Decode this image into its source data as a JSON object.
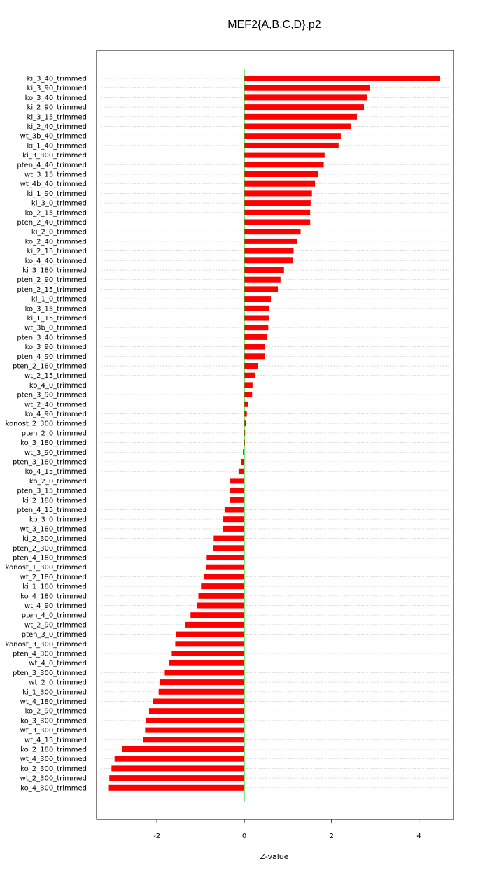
{
  "chart_data": {
    "type": "bar",
    "orientation": "horizontal",
    "title": "MEF2{A,B,C,D}.p2",
    "xlabel": "Z-value",
    "ylabel": "",
    "xlim": [
      -3.4,
      4.8
    ],
    "xticks": [
      -2,
      0,
      2,
      4
    ],
    "grid": true,
    "bar_color": "#ff0000",
    "zero_line_color": "#00cc00",
    "categories": [
      "ki_3_40_trimmed",
      "ki_3_90_trimmed",
      "ko_3_40_trimmed",
      "ki_2_90_trimmed",
      "ki_3_15_trimmed",
      "ki_2_40_trimmed",
      "wt_3b_40_trimmed",
      "ki_1_40_trimmed",
      "ki_3_300_trimmed",
      "pten_4_40_trimmed",
      "wt_3_15_trimmed",
      "wt_4b_40_trimmed",
      "ki_1_90_trimmed",
      "ki_3_0_trimmed",
      "ko_2_15_trimmed",
      "pten_2_40_trimmed",
      "ki_2_0_trimmed",
      "ko_2_40_trimmed",
      "ki_2_15_trimmed",
      "ko_4_40_trimmed",
      "ki_3_180_trimmed",
      "pten_2_90_trimmed",
      "pten_2_15_trimmed",
      "ki_1_0_trimmed",
      "ko_3_15_trimmed",
      "ki_1_15_trimmed",
      "wt_3b_0_trimmed",
      "pten_3_40_trimmed",
      "ko_3_90_trimmed",
      "pten_4_90_trimmed",
      "pten_2_180_trimmed",
      "wt_2_15_trimmed",
      "ko_4_0_trimmed",
      "pten_3_90_trimmed",
      "wt_2_40_trimmed",
      "ko_4_90_trimmed",
      "konost_2_300_trimmed",
      "pten_2_0_trimmed",
      "ko_3_180_trimmed",
      "wt_3_90_trimmed",
      "pten_3_180_trimmed",
      "ko_4_15_trimmed",
      "ko_2_0_trimmed",
      "pten_3_15_trimmed",
      "ki_2_180_trimmed",
      "pten_4_15_trimmed",
      "ko_3_0_trimmed",
      "wt_3_180_trimmed",
      "ki_2_300_trimmed",
      "pten_2_300_trimmed",
      "pten_4_180_trimmed",
      "konost_1_300_trimmed",
      "wt_2_180_trimmed",
      "ki_1_180_trimmed",
      "ko_4_180_trimmed",
      "wt_4_90_trimmed",
      "pten_4_0_trimmed",
      "wt_2_90_trimmed",
      "pten_3_0_trimmed",
      "konost_3_300_trimmed",
      "pten_4_300_trimmed",
      "wt_4_0_trimmed",
      "pten_3_300_trimmed",
      "wt_2_0_trimmed",
      "ki_1_300_trimmed",
      "wt_4_180_trimmed",
      "ko_2_90_trimmed",
      "ko_3_300_trimmed",
      "wt_3_300_trimmed",
      "wt_4_15_trimmed",
      "ko_2_180_trimmed",
      "wt_4_300_trimmed",
      "ko_2_300_trimmed",
      "wt_2_300_trimmed",
      "ko_4_300_trimmed"
    ],
    "values": [
      4.48,
      2.88,
      2.81,
      2.74,
      2.58,
      2.45,
      2.21,
      2.16,
      1.84,
      1.82,
      1.69,
      1.62,
      1.55,
      1.52,
      1.51,
      1.51,
      1.29,
      1.21,
      1.13,
      1.12,
      0.91,
      0.83,
      0.77,
      0.61,
      0.57,
      0.56,
      0.55,
      0.53,
      0.48,
      0.47,
      0.31,
      0.24,
      0.19,
      0.18,
      0.09,
      0.06,
      0.04,
      0.02,
      0.01,
      -0.03,
      -0.08,
      -0.13,
      -0.32,
      -0.33,
      -0.33,
      -0.45,
      -0.48,
      -0.49,
      -0.7,
      -0.71,
      -0.86,
      -0.88,
      -0.92,
      -0.99,
      -1.05,
      -1.09,
      -1.23,
      -1.36,
      -1.57,
      -1.58,
      -1.66,
      -1.72,
      -1.82,
      -1.94,
      -1.96,
      -2.09,
      -2.18,
      -2.26,
      -2.27,
      -2.31,
      -2.8,
      -2.97,
      -3.04,
      -3.09,
      -3.1
    ]
  }
}
